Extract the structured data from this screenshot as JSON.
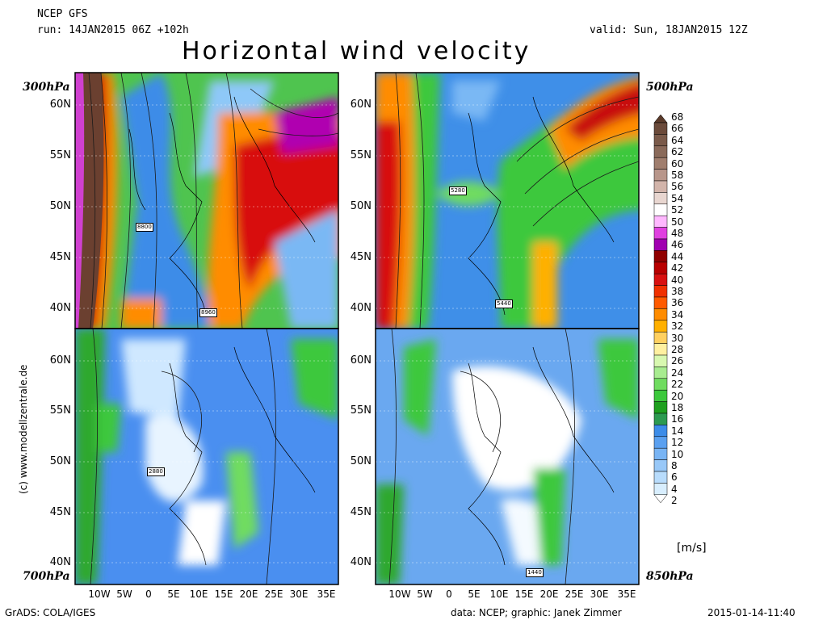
{
  "header": {
    "model": "NCEP GFS",
    "run": "run: 14JAN2015 06Z +102h",
    "valid": "valid: Sun, 18JAN2015 12Z",
    "title": "Horizontal wind velocity"
  },
  "panels": [
    {
      "id": "p300",
      "level": "300hPa",
      "isolines": [
        "8800",
        "8960"
      ],
      "colors": {
        "bg": "#4fc44f",
        "hi1": "#ff6a00",
        "hi2": "#c81010",
        "hi3": "#b000b0",
        "lo": "#6aa8f0",
        "jet": "#6b4030"
      }
    },
    {
      "id": "p500",
      "level": "500hPa",
      "isolines": [
        "5280",
        "5440"
      ],
      "colors": {
        "bg": "#3f8fe8",
        "hi1": "#ff8c00",
        "hi2": "#c81010",
        "hi3": "#b000b0",
        "lo": "#2ea82e"
      }
    },
    {
      "id": "p700",
      "level": "700hPa",
      "isolines": [
        "2880"
      ],
      "colors": {
        "bg": "#4a8ff0",
        "hi1": "#2ea82e",
        "lo": "#d7f0ff"
      }
    },
    {
      "id": "p850",
      "level": "850hPa",
      "isolines": [
        "1440"
      ],
      "colors": {
        "bg": "#6aa8f0",
        "hi1": "#2ea82e",
        "lo": "#ffffff"
      }
    }
  ],
  "lat_labels": [
    "60N",
    "55N",
    "50N",
    "45N",
    "40N"
  ],
  "lon_labels": [
    "10W",
    "5W",
    "0",
    "5E",
    "10E",
    "15E",
    "20E",
    "25E",
    "30E",
    "35E"
  ],
  "colorbar": {
    "ticks": [
      68,
      66,
      64,
      62,
      60,
      58,
      56,
      54,
      52,
      50,
      48,
      46,
      44,
      42,
      40,
      38,
      36,
      34,
      32,
      30,
      28,
      26,
      24,
      22,
      20,
      18,
      16,
      14,
      12,
      10,
      8,
      6,
      4,
      2
    ],
    "colors": [
      "#5a3a2a",
      "#6b4a3a",
      "#7a5a4a",
      "#8a6a5a",
      "#a07e6e",
      "#b8968a",
      "#d2b4aa",
      "#e8d6d0",
      "#ffffff",
      "#ffb8ff",
      "#e040e0",
      "#a000b0",
      "#900000",
      "#b80000",
      "#d81010",
      "#f03000",
      "#ff5a00",
      "#ff8c00",
      "#ffb000",
      "#ffd060",
      "#fff0a0",
      "#d8f8b0",
      "#a8ec90",
      "#70dc60",
      "#3cc83c",
      "#1ea01e",
      "#2c9a50",
      "#3c8ce8",
      "#5aa0f0",
      "#78b4f4",
      "#98c8f8",
      "#b8dcfc",
      "#d8eefe",
      "#ffffff"
    ],
    "unit": "[m/s]"
  },
  "credit": "(c) www.modellzentrale.de",
  "footer": {
    "left": "GrADS: COLA/IGES",
    "center": "data: NCEP; graphic: Janek Zimmer",
    "right": "2015-01-14-11:40"
  }
}
